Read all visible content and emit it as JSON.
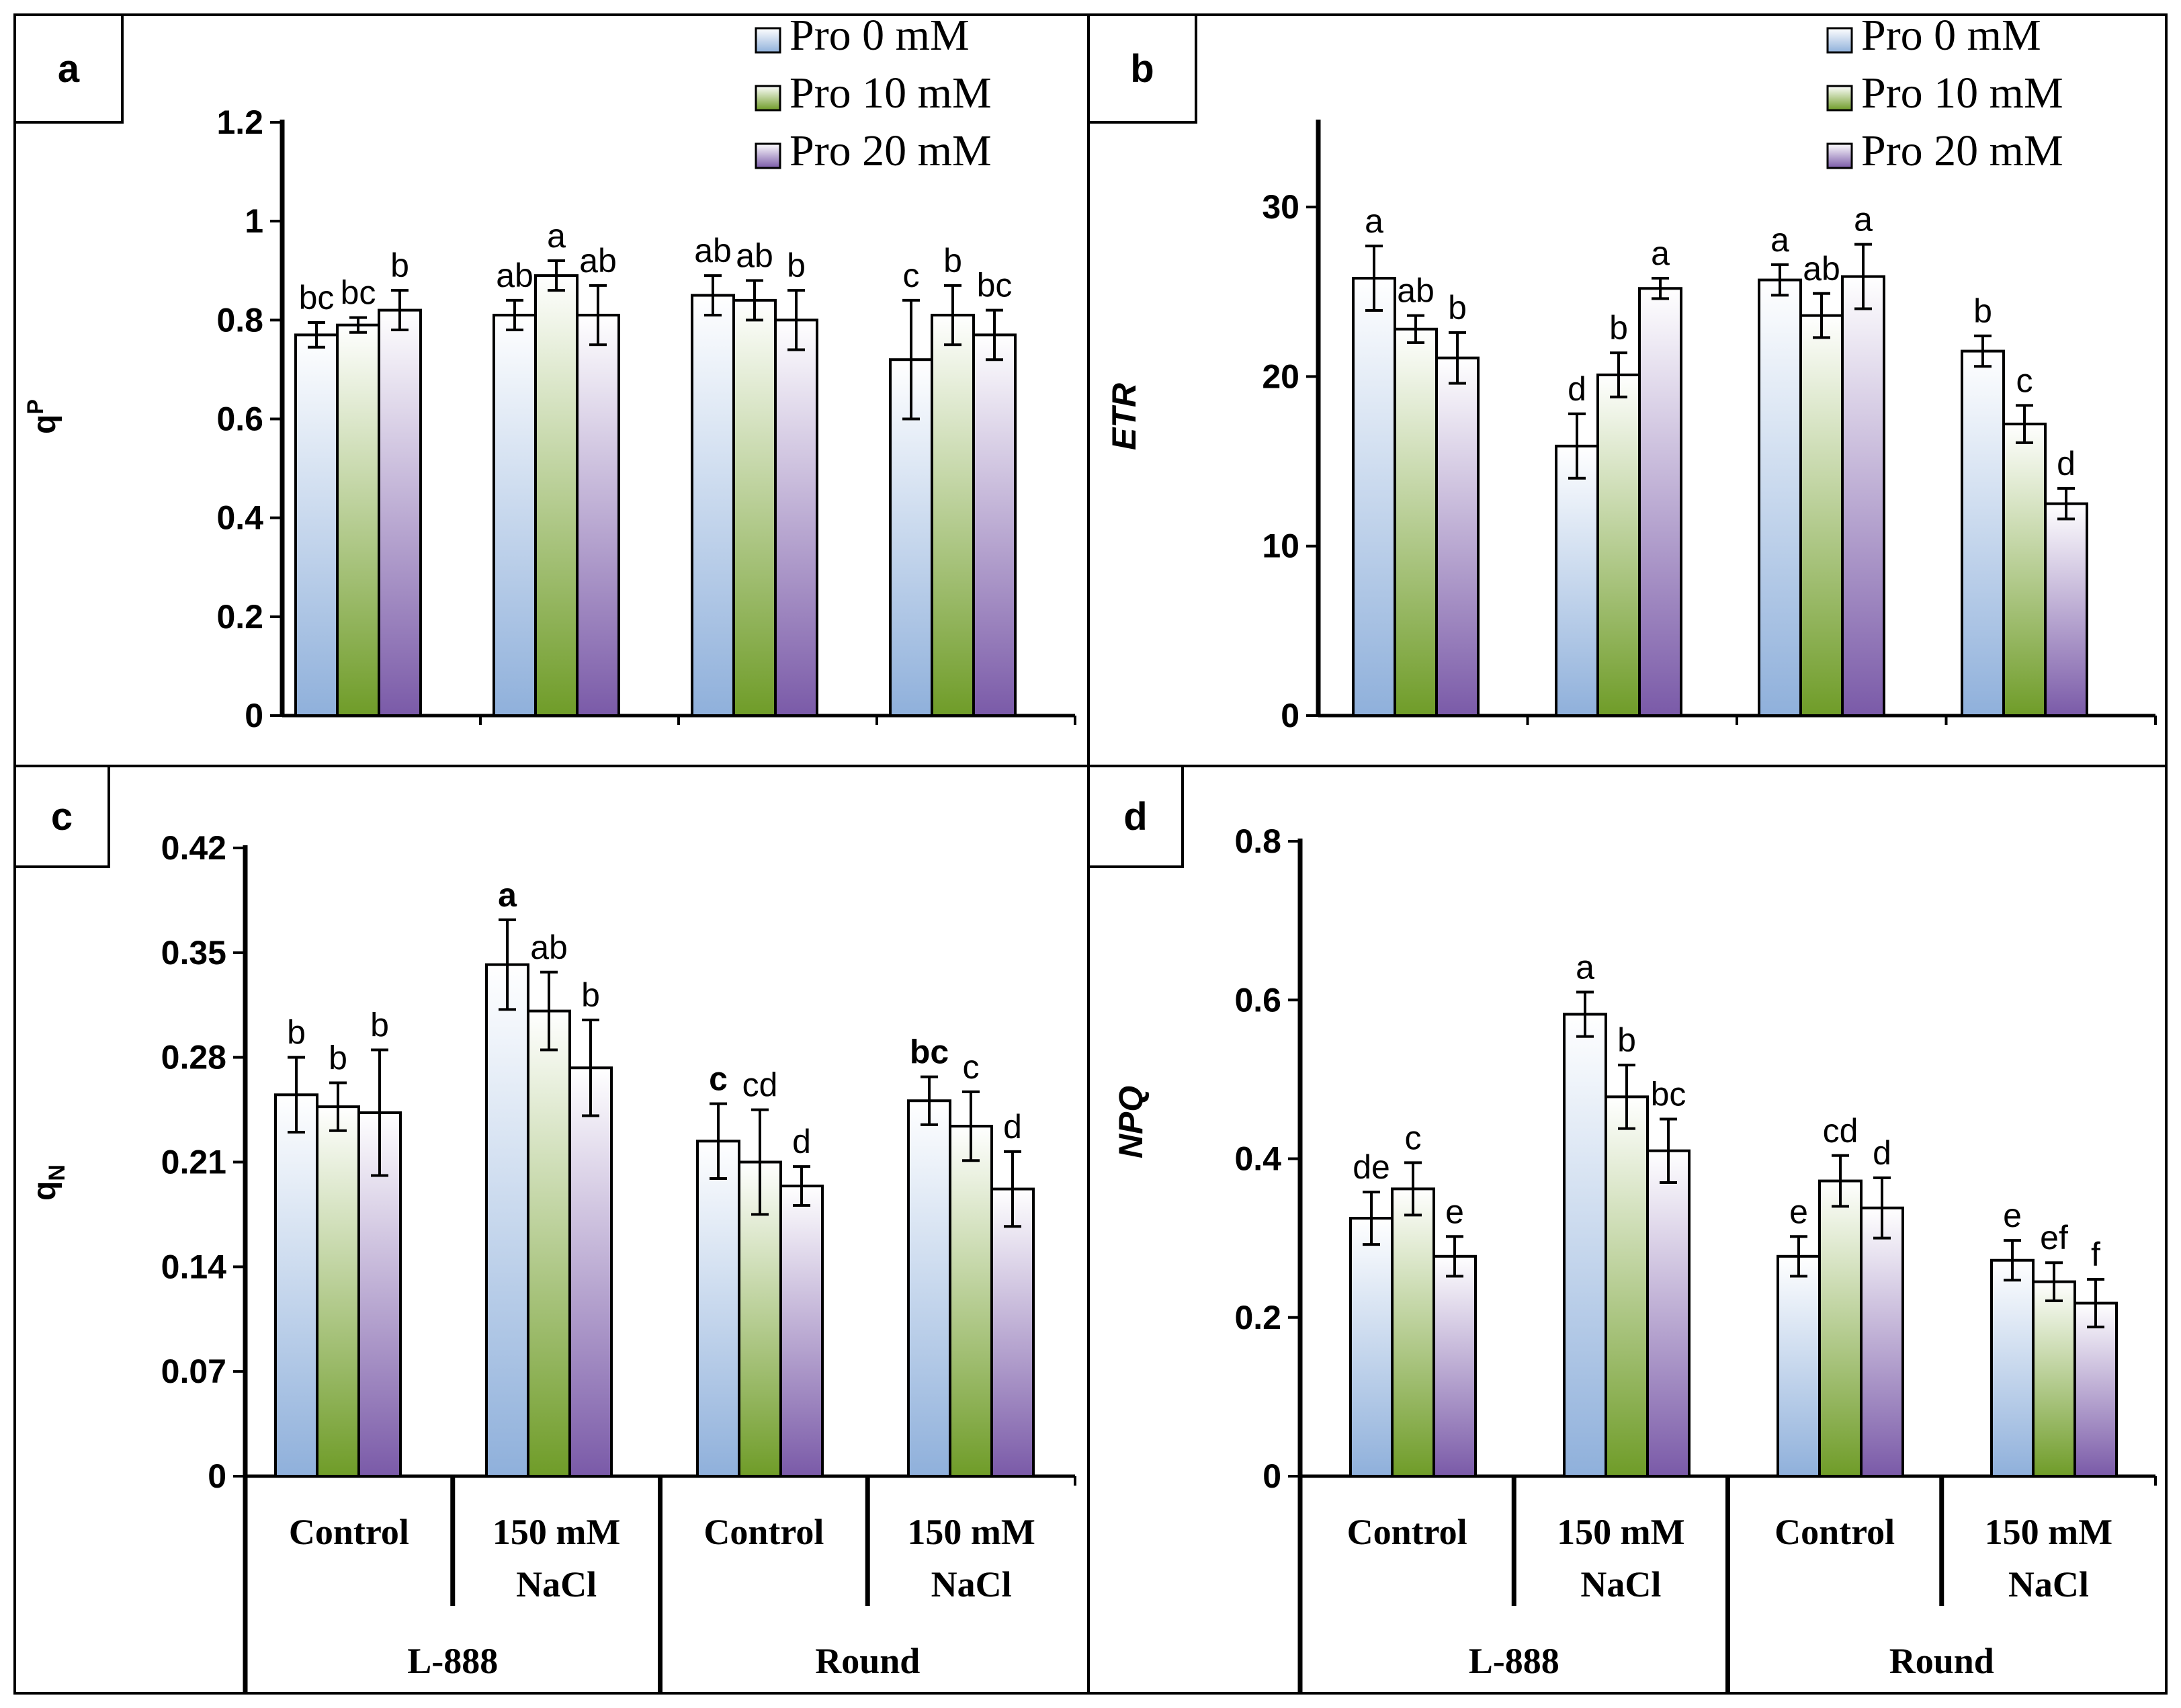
{
  "figure": {
    "legend_entries": [
      "Pro 0 mM",
      "Pro 10 mM",
      "Pro 20 mM"
    ],
    "category_labels": [
      [
        "Control"
      ],
      [
        "150 mM",
        "NaCl"
      ],
      [
        "Control"
      ],
      [
        "150 mM",
        "NaCl"
      ]
    ],
    "group_labels": [
      "L-888",
      "Round"
    ],
    "series_colors": {
      "Pro 0 mM": {
        "light": "#ffffff",
        "dark": "#8fb0db"
      },
      "Pro 10 mM": {
        "light": "#ffffff",
        "dark": "#6f9c28"
      },
      "Pro 20 mM": {
        "light": "#ffffff",
        "dark": "#7a5aa8"
      }
    }
  },
  "chart_data": [
    {
      "panel": "a",
      "type": "bar",
      "ylabel": "qP",
      "ylim": [
        0,
        1.2
      ],
      "yticks": [
        0,
        0.2,
        0.4,
        0.6,
        0.8,
        1,
        1.2
      ],
      "ytick_labels": [
        "0",
        "0.2",
        "0.4",
        "0.6",
        "0.8",
        "1",
        "1.2"
      ],
      "series": [
        {
          "name": "Pro 0 mM",
          "values": [
            0.77,
            0.81,
            0.85,
            0.72
          ],
          "errors": [
            0.025,
            0.03,
            0.04,
            0.12
          ],
          "labels": [
            "bc",
            "ab",
            "ab",
            "c"
          ]
        },
        {
          "name": "Pro 10 mM",
          "values": [
            0.79,
            0.89,
            0.84,
            0.81
          ],
          "errors": [
            0.015,
            0.03,
            0.04,
            0.06
          ],
          "labels": [
            "bc",
            "a",
            "ab",
            "b"
          ]
        },
        {
          "name": "Pro 20 mM",
          "values": [
            0.82,
            0.81,
            0.8,
            0.77
          ],
          "errors": [
            0.04,
            0.06,
            0.06,
            0.05
          ],
          "labels": [
            "b",
            "ab",
            "b",
            "bc"
          ]
        }
      ]
    },
    {
      "panel": "b",
      "type": "bar",
      "ylabel": "ETR",
      "ylim": [
        0,
        35
      ],
      "yticks": [
        0,
        10,
        20,
        30
      ],
      "ytick_labels": [
        "0",
        "10",
        "20",
        "30"
      ],
      "series": [
        {
          "name": "Pro 0 mM",
          "values": [
            25.8,
            15.9,
            25.7,
            21.5
          ],
          "errors": [
            1.9,
            1.9,
            0.9,
            0.9
          ],
          "labels": [
            "a",
            "d",
            "a",
            "b"
          ]
        },
        {
          "name": "Pro 10 mM",
          "values": [
            22.8,
            20.1,
            23.6,
            17.2
          ],
          "errors": [
            0.8,
            1.3,
            1.3,
            1.1
          ],
          "labels": [
            "ab",
            "b",
            "ab",
            "c"
          ]
        },
        {
          "name": "Pro 20 mM",
          "values": [
            21.1,
            25.2,
            25.9,
            12.5
          ],
          "errors": [
            1.5,
            0.6,
            1.9,
            0.9
          ],
          "labels": [
            "b",
            "a",
            "a",
            "d"
          ]
        }
      ]
    },
    {
      "panel": "c",
      "type": "bar",
      "ylabel": "qN",
      "ylim": [
        0,
        0.42
      ],
      "yticks": [
        0,
        0.07,
        0.14,
        0.21,
        0.28,
        0.35,
        0.42
      ],
      "ytick_labels": [
        "0",
        "0.07",
        "0.14",
        "0.21",
        "0.28",
        "0.35",
        "0.42"
      ],
      "series": [
        {
          "name": "Pro 0 mM",
          "values": [
            0.255,
            0.342,
            0.224,
            0.251
          ],
          "errors": [
            0.025,
            0.03,
            0.025,
            0.016
          ],
          "labels": [
            "b",
            "a",
            "c",
            "bc"
          ],
          "bold": [
            false,
            true,
            true,
            true
          ]
        },
        {
          "name": "Pro 10 mM",
          "values": [
            0.247,
            0.311,
            0.21,
            0.234
          ],
          "errors": [
            0.016,
            0.026,
            0.035,
            0.023
          ],
          "labels": [
            "b",
            "ab",
            "cd",
            "c"
          ],
          "bold": [
            false,
            false,
            false,
            false
          ]
        },
        {
          "name": "Pro 20 mM",
          "values": [
            0.243,
            0.273,
            0.194,
            0.192
          ],
          "errors": [
            0.042,
            0.032,
            0.013,
            0.025
          ],
          "labels": [
            "b",
            "b",
            "d",
            "d"
          ],
          "bold": [
            false,
            false,
            false,
            false
          ]
        }
      ]
    },
    {
      "panel": "d",
      "type": "bar",
      "ylabel": "NPQ",
      "ylim": [
        0,
        0.8
      ],
      "yticks": [
        0,
        0.2,
        0.4,
        0.6,
        0.8
      ],
      "ytick_labels": [
        "0",
        "0.2",
        "0.4",
        "0.6",
        "0.8"
      ],
      "series": [
        {
          "name": "Pro 0 mM",
          "values": [
            0.325,
            0.582,
            0.277,
            0.272
          ],
          "errors": [
            0.033,
            0.028,
            0.025,
            0.025
          ],
          "labels": [
            "de",
            "a",
            "e",
            "e"
          ]
        },
        {
          "name": "Pro 10 mM",
          "values": [
            0.362,
            0.478,
            0.372,
            0.245
          ],
          "errors": [
            0.033,
            0.04,
            0.032,
            0.024
          ],
          "labels": [
            "c",
            "b",
            "cd",
            "ef"
          ]
        },
        {
          "name": "Pro 20 mM",
          "values": [
            0.277,
            0.41,
            0.338,
            0.218
          ],
          "errors": [
            0.025,
            0.04,
            0.038,
            0.03
          ],
          "labels": [
            "e",
            "bc",
            "d",
            "f"
          ]
        }
      ]
    }
  ]
}
